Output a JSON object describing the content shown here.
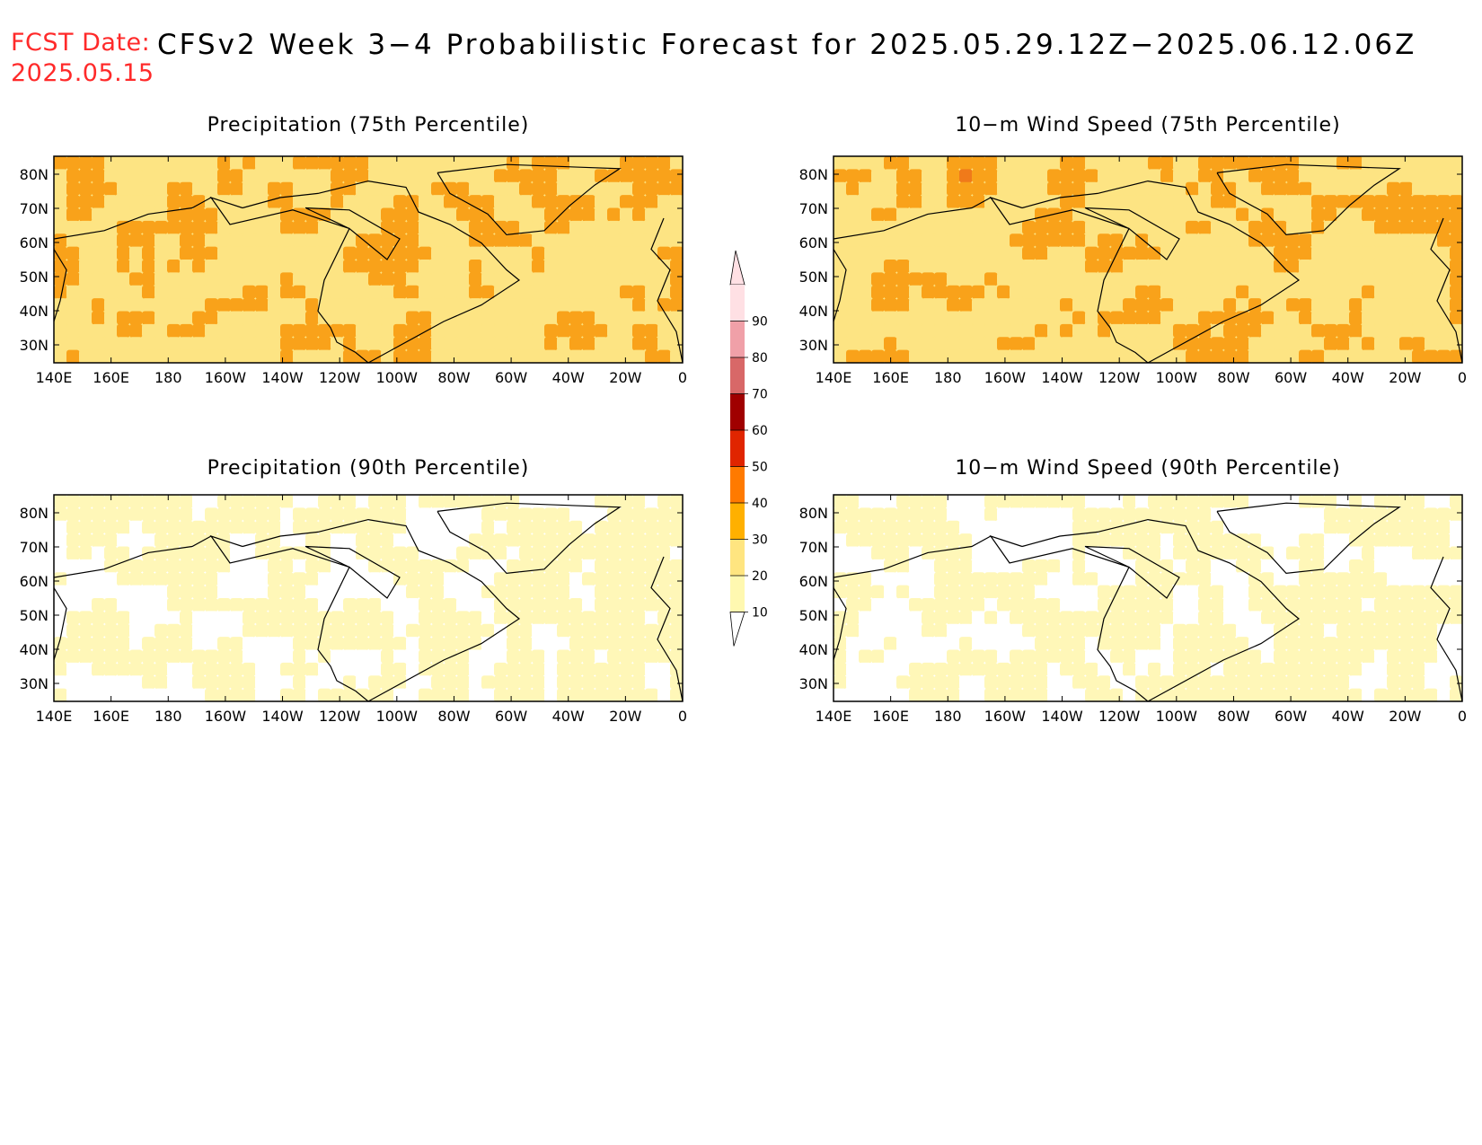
{
  "header": {
    "fcst_label": "FCST Date:",
    "fcst_date": "2025.05.15",
    "title": "CFSv2 Week 3−4 Probabilistic Forecast for 2025.05.29.12Z−2025.06.12.06Z"
  },
  "axes": {
    "lat_labels": [
      "80N",
      "70N",
      "60N",
      "50N",
      "40N",
      "30N"
    ],
    "lon_labels": [
      "140E",
      "160E",
      "180",
      "160W",
      "140W",
      "120W",
      "100W",
      "80W",
      "60W",
      "40W",
      "20W",
      "0"
    ]
  },
  "panels": [
    {
      "title": "Precipitation (75th Percentile)",
      "level": "high"
    },
    {
      "title": "10−m Wind Speed (75th Percentile)",
      "level": "high"
    },
    {
      "title": "Precipitation (90th Percentile)",
      "level": "low"
    },
    {
      "title": "10−m Wind Speed (90th Percentile)",
      "level": "low"
    }
  ],
  "colorbar": {
    "labels": [
      "10",
      "20",
      "30",
      "40",
      "50",
      "60",
      "70",
      "80",
      "90"
    ],
    "colors": [
      "#fff8b0",
      "#ffe580",
      "#ffb000",
      "#ff7a00",
      "#e02500",
      "#a00000",
      "#d86868",
      "#f0a0a8",
      "#ffe0e4"
    ]
  },
  "palette": {
    "white": "#ffffff",
    "pale": "#fff7b8",
    "light": "#fde483",
    "orange": "#f9a21a",
    "dark_orange": "#f07a1a",
    "red": "#e0502a",
    "title_red": "#ff2a2a"
  }
}
